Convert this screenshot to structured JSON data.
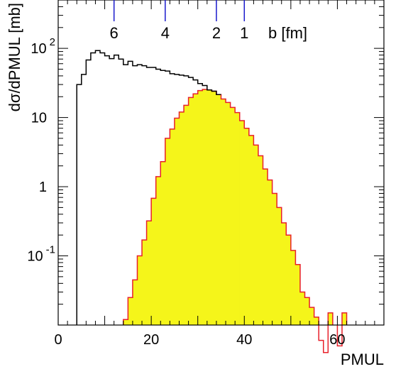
{
  "chart_data": {
    "type": "area",
    "xlabel": "PMUL",
    "ylabel": "dσ/dPMUL [mb]",
    "xlim": [
      0,
      70
    ],
    "ylim": [
      0.01,
      500
    ],
    "yscale": "log",
    "x_ticks": [
      {
        "value": 0,
        "label": "0"
      },
      {
        "value": 20,
        "label": "20"
      },
      {
        "value": 40,
        "label": "40"
      },
      {
        "value": 60,
        "label": "60"
      }
    ],
    "y_ticks": [
      {
        "value": 0.1,
        "label": "10",
        "exponent": "-1"
      },
      {
        "value": 1,
        "label": "1",
        "exponent": ""
      },
      {
        "value": 10,
        "label": "10",
        "exponent": ""
      },
      {
        "value": 100,
        "label": "10",
        "exponent": "2"
      }
    ],
    "series": [
      {
        "style": "outline",
        "color": "#000000",
        "bins": [
          [
            4,
            5,
            30
          ],
          [
            5,
            6,
            42
          ],
          [
            6,
            7,
            68
          ],
          [
            7,
            8,
            86
          ],
          [
            8,
            9,
            93
          ],
          [
            9,
            10,
            86
          ],
          [
            10,
            11,
            78
          ],
          [
            11,
            12,
            71
          ],
          [
            12,
            13,
            80
          ],
          [
            13,
            14,
            70
          ],
          [
            14,
            15,
            58
          ],
          [
            15,
            16,
            65
          ],
          [
            16,
            17,
            56
          ],
          [
            17,
            18,
            58
          ],
          [
            18,
            19,
            56
          ],
          [
            19,
            20,
            53
          ],
          [
            20,
            21,
            53
          ],
          [
            21,
            22,
            50
          ],
          [
            22,
            23,
            48
          ],
          [
            23,
            24,
            47
          ],
          [
            24,
            25,
            43
          ],
          [
            25,
            26,
            42
          ],
          [
            26,
            27,
            41
          ],
          [
            27,
            28,
            40
          ],
          [
            28,
            29,
            38
          ],
          [
            29,
            30,
            35
          ],
          [
            30,
            31,
            31
          ],
          [
            31,
            32,
            29
          ],
          [
            32,
            33,
            25
          ],
          [
            33,
            34,
            24
          ],
          [
            34,
            35,
            21.5
          ]
        ]
      },
      {
        "style": "filled",
        "color": "#e8202a",
        "fill": "#f5f51a",
        "bins": [
          [
            14,
            15,
            0.012
          ],
          [
            15,
            16,
            0.025
          ],
          [
            16,
            17,
            0.045
          ],
          [
            17,
            18,
            0.1
          ],
          [
            18,
            19,
            0.17
          ],
          [
            19,
            20,
            0.32
          ],
          [
            20,
            21,
            0.68
          ],
          [
            21,
            22,
            1.4
          ],
          [
            22,
            23,
            2.3
          ],
          [
            23,
            24,
            5.0
          ],
          [
            24,
            25,
            6.8
          ],
          [
            25,
            26,
            9.8
          ],
          [
            26,
            27,
            12.0
          ],
          [
            27,
            28,
            15.0
          ],
          [
            28,
            29,
            19.5
          ],
          [
            29,
            30,
            22.0
          ],
          [
            30,
            31,
            24.5
          ],
          [
            31,
            32,
            25.5
          ],
          [
            32,
            33,
            25.0
          ],
          [
            33,
            34,
            24.0
          ],
          [
            34,
            35,
            21.5
          ],
          [
            35,
            36,
            18.5
          ],
          [
            36,
            37,
            16.5
          ],
          [
            37,
            38,
            14.0
          ],
          [
            38,
            39,
            11.8
          ],
          [
            39,
            40,
            9.0
          ],
          [
            40,
            41,
            7.0
          ],
          [
            41,
            42,
            5.5
          ],
          [
            42,
            43,
            4.0
          ],
          [
            43,
            44,
            2.8
          ],
          [
            44,
            45,
            1.8
          ],
          [
            45,
            46,
            1.25
          ],
          [
            46,
            47,
            0.8
          ],
          [
            47,
            48,
            0.5
          ],
          [
            48,
            49,
            0.3
          ],
          [
            49,
            50,
            0.2
          ],
          [
            50,
            51,
            0.12
          ],
          [
            51,
            52,
            0.075
          ],
          [
            52,
            53,
            0.03
          ],
          [
            53,
            54,
            0.025
          ],
          [
            54,
            55,
            0.018
          ],
          [
            55,
            56,
            0.013
          ],
          [
            56,
            57,
            0.006
          ],
          [
            57,
            58,
            0.004
          ],
          [
            58,
            59,
            0.015
          ],
          [
            60,
            61,
            0.005
          ],
          [
            61,
            62,
            0.015
          ]
        ]
      }
    ],
    "impact_parameter_scale": {
      "label": "b [fm]",
      "color": "#1a1acc",
      "marks": [
        {
          "x": 12,
          "label": "6"
        },
        {
          "x": 23,
          "label": "4"
        },
        {
          "x": 34,
          "label": "2"
        },
        {
          "x": 40,
          "label": "1"
        }
      ]
    },
    "grid": false
  }
}
